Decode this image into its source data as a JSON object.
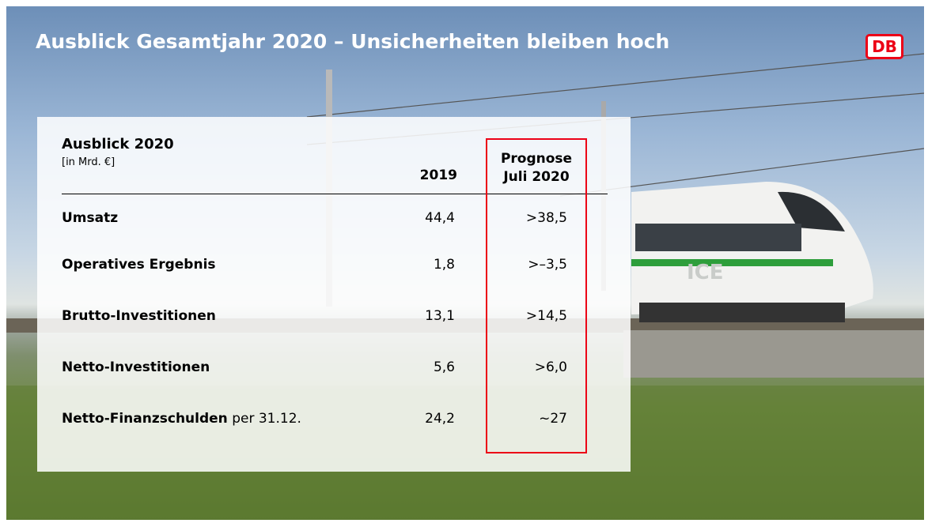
{
  "header": {
    "title": "Ausblick Gesamtjahr 2020 – Unsicherheiten bleiben hoch",
    "logo": "DB"
  },
  "table": {
    "title": "Ausblick 2020",
    "unit": "[in Mrd. €]",
    "columns": [
      "2019",
      "Prognose",
      "Juli 2020"
    ],
    "rows": [
      {
        "label": "Umsatz",
        "values": [
          "44,4",
          ">38,5"
        ]
      },
      {
        "label": "Operatives Ergebnis",
        "values": [
          "1,8",
          ">–3,5"
        ]
      },
      {
        "label": "Brutto-Investitionen",
        "values": [
          "13,1",
          ">14,5"
        ]
      },
      {
        "label": "Netto-Investitionen",
        "values": [
          "5,6",
          ">6,0"
        ]
      },
      {
        "label": "Netto-Finanzschulden",
        "note": "per 31.12.",
        "values": [
          "24,2",
          "~27"
        ]
      }
    ]
  }
}
